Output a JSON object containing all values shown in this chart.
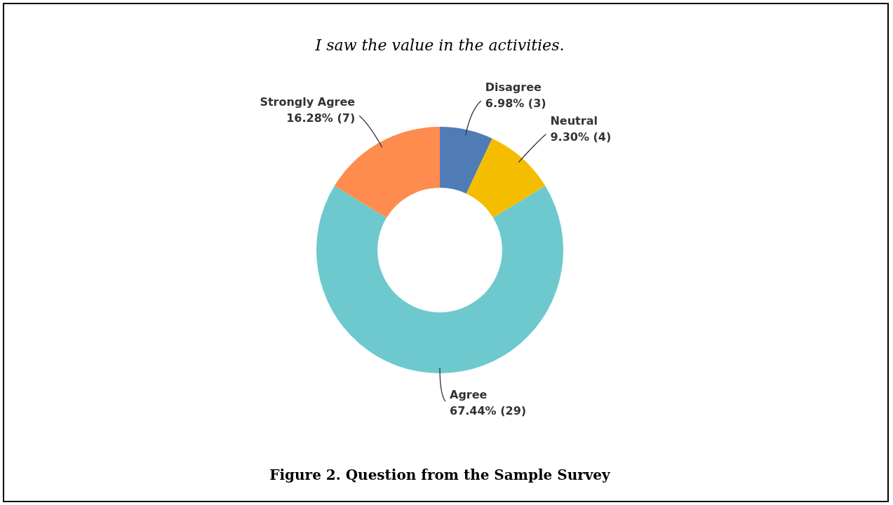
{
  "chart_data": {
    "type": "donut",
    "title": "I saw the value in the activities.",
    "categories": [
      "Disagree",
      "Neutral",
      "Agree",
      "Strongly Agree"
    ],
    "values": [
      3,
      4,
      29,
      7
    ],
    "value_labels": [
      "6.98% (3)",
      "9.30% (4)",
      "67.44% (29)",
      "16.28% (7)"
    ],
    "colors": [
      "#4f7cb5",
      "#f5bd00",
      "#6dc9ce",
      "#ff8c4f"
    ],
    "annotations": [
      "Figure 2. Question from the Sample Survey"
    ]
  }
}
